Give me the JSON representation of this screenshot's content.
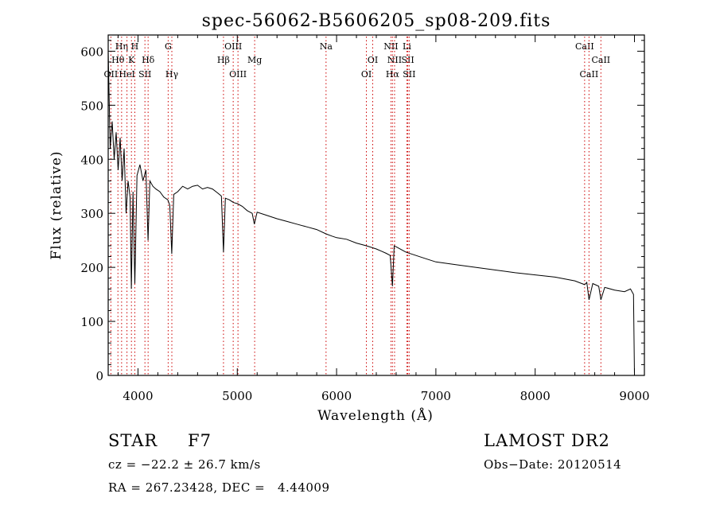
{
  "chart_data": {
    "type": "line",
    "title": "spec-56062-B5606205_sp08-209.fits",
    "xlabel": "Wavelength (Å)",
    "ylabel": "Flux (relative)",
    "xlim": [
      3700,
      9100
    ],
    "ylim": [
      0,
      630
    ],
    "x_ticks": [
      4000,
      5000,
      6000,
      7000,
      8000,
      9000
    ],
    "y_ticks": [
      0,
      100,
      200,
      300,
      400,
      500,
      600
    ],
    "grid": false,
    "series": [
      {
        "x": [
          3700,
          3720,
          3740,
          3760,
          3780,
          3800,
          3820,
          3840,
          3860,
          3880,
          3900,
          3920,
          3933,
          3950,
          3968,
          3990,
          4020,
          4050,
          4080,
          4101,
          4120,
          4150,
          4180,
          4220,
          4260,
          4300,
          4320,
          4340,
          4360,
          4400,
          4450,
          4500,
          4550,
          4600,
          4650,
          4700,
          4750,
          4800,
          4840,
          4861,
          4880,
          4920,
          4960,
          5000,
          5050,
          5100,
          5150,
          5172,
          5200,
          5300,
          5400,
          5500,
          5600,
          5700,
          5800,
          5893,
          5950,
          6000,
          6100,
          6200,
          6300,
          6400,
          6450,
          6500,
          6540,
          6563,
          6580,
          6600,
          6650,
          6700,
          6800,
          6900,
          7000,
          7200,
          7400,
          7600,
          7800,
          8000,
          8200,
          8400,
          8498,
          8520,
          8542,
          8580,
          8640,
          8662,
          8700,
          8800,
          8900,
          8960,
          8990,
          9000
        ],
        "y": [
          600,
          420,
          470,
          400,
          450,
          380,
          440,
          360,
          420,
          300,
          360,
          330,
          160,
          340,
          170,
          370,
          390,
          360,
          380,
          250,
          360,
          350,
          345,
          340,
          330,
          325,
          315,
          225,
          335,
          340,
          350,
          345,
          350,
          352,
          345,
          348,
          345,
          338,
          332,
          228,
          328,
          325,
          320,
          318,
          313,
          305,
          300,
          280,
          302,
          296,
          290,
          285,
          280,
          275,
          270,
          262,
          258,
          255,
          252,
          245,
          240,
          234,
          230,
          226,
          222,
          165,
          240,
          238,
          233,
          228,
          222,
          216,
          210,
          205,
          200,
          195,
          190,
          186,
          182,
          175,
          168,
          172,
          140,
          170,
          165,
          140,
          163,
          158,
          155,
          160,
          150,
          0
        ],
        "color": "#000000"
      }
    ],
    "lines": [
      {
        "name": "OII",
        "x": 3727,
        "row": 3
      },
      {
        "name": "Hθ",
        "x": 3798,
        "row": 2
      },
      {
        "name": "Hη",
        "x": 3835,
        "row": 1
      },
      {
        "name": "HeI",
        "x": 3889,
        "row": 3
      },
      {
        "name": "K",
        "x": 3934,
        "row": 2
      },
      {
        "name": "H",
        "x": 3968,
        "row": 1
      },
      {
        "name": "SII",
        "x": 4070,
        "row": 3
      },
      {
        "name": "Hδ",
        "x": 4102,
        "row": 2
      },
      {
        "name": "G",
        "x": 4304,
        "row": 1
      },
      {
        "name": "Hγ",
        "x": 4341,
        "row": 3
      },
      {
        "name": "Hβ",
        "x": 4861,
        "row": 2
      },
      {
        "name": "OIII",
        "x": 4959,
        "row": 1
      },
      {
        "name": "OIII",
        "x": 5007,
        "row": 3
      },
      {
        "name": "Mg",
        "x": 5175,
        "row": 2
      },
      {
        "name": "Na",
        "x": 5894,
        "row": 1
      },
      {
        "name": "OI",
        "x": 6300,
        "row": 3
      },
      {
        "name": "OI",
        "x": 6364,
        "row": 2
      },
      {
        "name": "NII",
        "x": 6548,
        "row": 1
      },
      {
        "name": "Hα",
        "x": 6563,
        "row": 3
      },
      {
        "name": "NII",
        "x": 6584,
        "row": 2
      },
      {
        "name": "SII",
        "x": 6717,
        "row": 2
      },
      {
        "name": "Li",
        "x": 6708,
        "row": 1
      },
      {
        "name": "SII",
        "x": 6731,
        "row": 3
      },
      {
        "name": "CaII",
        "x": 8498,
        "row": 1
      },
      {
        "name": "CaII",
        "x": 8542,
        "row": 3
      },
      {
        "name": "CaII",
        "x": 8662,
        "row": 2
      }
    ],
    "marker_color": "#cc0000"
  },
  "info": {
    "class": "STAR",
    "subclass": "F7",
    "survey": "LAMOST DR2",
    "cz": "cz = −22.2 ± 26.7 km/s",
    "obs_date": "Obs−Date: 20120514",
    "coords": "RA = 267.23428, DEC =   4.44009"
  }
}
